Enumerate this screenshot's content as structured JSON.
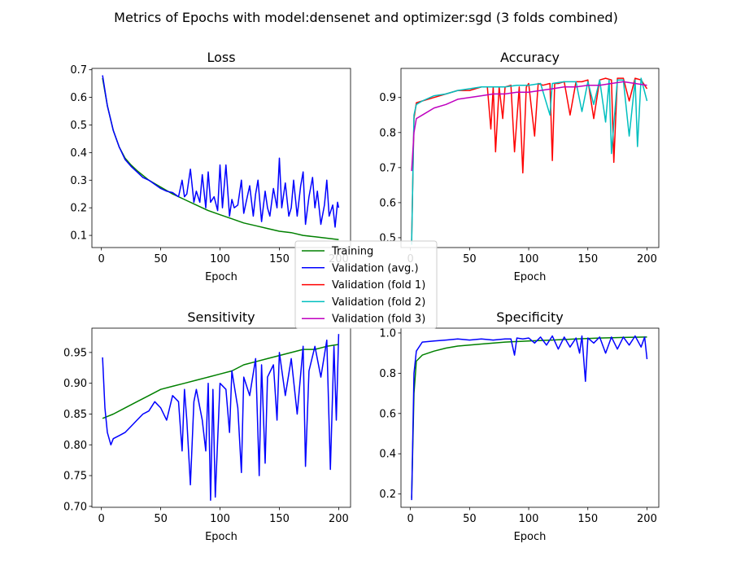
{
  "figure_title": "Metrics of Epochs with model:densenet and optimizer:sgd (3 folds combined)",
  "legend": {
    "placement": "center",
    "entries": [
      {
        "label": "Training",
        "color": "#008000"
      },
      {
        "label": "Validation (avg.)",
        "color": "#0000ff"
      },
      {
        "label": "Validation (fold 1)",
        "color": "#ff0000"
      },
      {
        "label": "Validation (fold 2)",
        "color": "#00bfbf"
      },
      {
        "label": "Validation (fold 3)",
        "color": "#bf00bf"
      }
    ]
  },
  "chart_data": [
    {
      "type": "line",
      "title": "Loss",
      "xlabel": "Epoch",
      "ylabel": "",
      "xlim": [
        -8,
        210
      ],
      "ylim": [
        0.056,
        0.705
      ],
      "xticks": [
        0,
        50,
        100,
        150,
        200
      ],
      "yticks": [
        0.1,
        0.2,
        0.3,
        0.4,
        0.5,
        0.6,
        0.7
      ],
      "tick_labels_y": [
        "0.1",
        "0.2",
        "0.3",
        "0.4",
        "0.5",
        "0.6",
        "0.7"
      ],
      "grid": false,
      "series": [
        {
          "name": "Training",
          "color": "#008000",
          "x": [
            1,
            5,
            10,
            15,
            20,
            25,
            30,
            40,
            50,
            60,
            70,
            80,
            90,
            100,
            110,
            120,
            130,
            140,
            150,
            160,
            170,
            180,
            190,
            200
          ],
          "y": [
            0.67,
            0.57,
            0.48,
            0.42,
            0.38,
            0.355,
            0.335,
            0.3,
            0.275,
            0.25,
            0.23,
            0.21,
            0.19,
            0.175,
            0.16,
            0.145,
            0.135,
            0.125,
            0.115,
            0.11,
            0.1,
            0.095,
            0.09,
            0.085
          ]
        },
        {
          "name": "Validation (avg.)",
          "color": "#0000ff",
          "x": [
            1,
            5,
            10,
            15,
            20,
            25,
            30,
            35,
            40,
            45,
            50,
            55,
            60,
            65,
            68,
            70,
            72,
            75,
            78,
            80,
            83,
            85,
            88,
            90,
            92,
            95,
            98,
            100,
            102,
            105,
            108,
            110,
            112,
            115,
            118,
            120,
            122,
            125,
            128,
            130,
            132,
            135,
            138,
            140,
            142,
            145,
            148,
            150,
            152,
            155,
            158,
            160,
            162,
            165,
            168,
            170,
            172,
            175,
            178,
            180,
            182,
            185,
            188,
            190,
            192,
            195,
            197,
            199,
            200
          ],
          "y": [
            0.68,
            0.57,
            0.48,
            0.42,
            0.375,
            0.35,
            0.33,
            0.31,
            0.3,
            0.285,
            0.27,
            0.26,
            0.255,
            0.24,
            0.3,
            0.24,
            0.25,
            0.34,
            0.22,
            0.26,
            0.22,
            0.32,
            0.2,
            0.33,
            0.22,
            0.24,
            0.19,
            0.355,
            0.2,
            0.355,
            0.17,
            0.23,
            0.2,
            0.21,
            0.3,
            0.18,
            0.22,
            0.28,
            0.17,
            0.25,
            0.3,
            0.15,
            0.26,
            0.2,
            0.17,
            0.27,
            0.2,
            0.38,
            0.2,
            0.29,
            0.17,
            0.2,
            0.3,
            0.17,
            0.28,
            0.33,
            0.14,
            0.24,
            0.31,
            0.2,
            0.26,
            0.14,
            0.21,
            0.3,
            0.17,
            0.21,
            0.13,
            0.22,
            0.2
          ]
        }
      ]
    },
    {
      "type": "line",
      "title": "Accuracy",
      "xlabel": "Epoch",
      "ylabel": "",
      "xlim": [
        -8,
        210
      ],
      "ylim": [
        0.472,
        0.983
      ],
      "xticks": [
        0,
        50,
        100,
        150,
        200
      ],
      "yticks": [
        0.5,
        0.6,
        0.7,
        0.8,
        0.9
      ],
      "tick_labels_y": [
        "0.5",
        "0.6",
        "0.7",
        "0.8",
        "0.9"
      ],
      "grid": false,
      "series": [
        {
          "name": "Validation (fold 1)",
          "color": "#ff0000",
          "x": [
            1,
            3,
            5,
            10,
            20,
            30,
            40,
            50,
            60,
            65,
            68,
            70,
            72,
            75,
            78,
            80,
            85,
            88,
            92,
            95,
            98,
            100,
            105,
            108,
            112,
            118,
            120,
            122,
            125,
            130,
            135,
            140,
            145,
            150,
            155,
            160,
            165,
            170,
            172,
            175,
            180,
            185,
            190,
            195,
            200
          ],
          "y": [
            0.49,
            0.84,
            0.885,
            0.89,
            0.9,
            0.91,
            0.92,
            0.92,
            0.93,
            0.93,
            0.81,
            0.93,
            0.745,
            0.93,
            0.84,
            0.93,
            0.935,
            0.745,
            0.93,
            0.685,
            0.93,
            0.94,
            0.79,
            0.94,
            0.935,
            0.94,
            0.72,
            0.94,
            0.94,
            0.945,
            0.85,
            0.945,
            0.945,
            0.95,
            0.84,
            0.95,
            0.955,
            0.95,
            0.715,
            0.955,
            0.955,
            0.89,
            0.955,
            0.95,
            0.925
          ]
        },
        {
          "name": "Validation (fold 2)",
          "color": "#00bfbf",
          "x": [
            1,
            3,
            5,
            10,
            20,
            30,
            40,
            50,
            60,
            70,
            80,
            90,
            100,
            110,
            118,
            120,
            130,
            140,
            145,
            150,
            155,
            160,
            165,
            168,
            170,
            175,
            180,
            185,
            190,
            192,
            195,
            200
          ],
          "y": [
            0.48,
            0.85,
            0.88,
            0.89,
            0.905,
            0.91,
            0.92,
            0.925,
            0.93,
            0.93,
            0.93,
            0.935,
            0.935,
            0.94,
            0.85,
            0.94,
            0.945,
            0.945,
            0.86,
            0.945,
            0.88,
            0.95,
            0.83,
            0.95,
            0.74,
            0.95,
            0.95,
            0.79,
            0.95,
            0.76,
            0.955,
            0.89
          ]
        },
        {
          "name": "Validation (fold 3)",
          "color": "#bf00bf",
          "x": [
            1,
            3,
            5,
            10,
            20,
            30,
            40,
            50,
            60,
            70,
            80,
            90,
            100,
            110,
            120,
            130,
            140,
            150,
            160,
            170,
            180,
            190,
            200
          ],
          "y": [
            0.69,
            0.8,
            0.84,
            0.85,
            0.87,
            0.88,
            0.895,
            0.9,
            0.905,
            0.91,
            0.91,
            0.915,
            0.915,
            0.92,
            0.925,
            0.93,
            0.93,
            0.935,
            0.935,
            0.94,
            0.945,
            0.94,
            0.935
          ]
        }
      ]
    },
    {
      "type": "line",
      "title": "Sensitivity",
      "xlabel": "Epoch",
      "ylabel": "",
      "xlim": [
        -8,
        210
      ],
      "ylim": [
        0.6985,
        0.9895
      ],
      "xticks": [
        0,
        50,
        100,
        150,
        200
      ],
      "yticks": [
        0.7,
        0.75,
        0.8,
        0.85,
        0.9,
        0.95
      ],
      "tick_labels_y": [
        "0.70",
        "0.75",
        "0.80",
        "0.85",
        "0.90",
        "0.95"
      ],
      "grid": false,
      "series": [
        {
          "name": "Training",
          "color": "#008000",
          "x": [
            1,
            10,
            20,
            30,
            40,
            50,
            60,
            70,
            80,
            90,
            100,
            110,
            120,
            130,
            140,
            150,
            160,
            170,
            180,
            190,
            200
          ],
          "y": [
            0.843,
            0.85,
            0.86,
            0.87,
            0.88,
            0.89,
            0.895,
            0.9,
            0.905,
            0.91,
            0.915,
            0.92,
            0.93,
            0.935,
            0.94,
            0.945,
            0.95,
            0.955,
            0.955,
            0.96,
            0.963
          ]
        },
        {
          "name": "Validation (avg.)",
          "color": "#0000ff",
          "x": [
            1,
            3,
            5,
            8,
            10,
            15,
            20,
            25,
            30,
            35,
            40,
            45,
            50,
            55,
            60,
            65,
            68,
            70,
            72,
            75,
            78,
            80,
            85,
            88,
            90,
            92,
            94,
            96,
            100,
            105,
            108,
            110,
            115,
            118,
            120,
            125,
            130,
            133,
            135,
            138,
            140,
            145,
            148,
            150,
            155,
            160,
            165,
            170,
            172,
            175,
            180,
            185,
            190,
            193,
            196,
            198,
            200
          ],
          "y": [
            0.942,
            0.86,
            0.82,
            0.8,
            0.81,
            0.815,
            0.82,
            0.83,
            0.84,
            0.85,
            0.855,
            0.87,
            0.86,
            0.84,
            0.88,
            0.87,
            0.79,
            0.89,
            0.84,
            0.735,
            0.87,
            0.89,
            0.84,
            0.79,
            0.9,
            0.71,
            0.89,
            0.715,
            0.9,
            0.89,
            0.82,
            0.92,
            0.86,
            0.755,
            0.91,
            0.88,
            0.94,
            0.75,
            0.93,
            0.77,
            0.91,
            0.93,
            0.84,
            0.95,
            0.88,
            0.94,
            0.85,
            0.96,
            0.765,
            0.92,
            0.96,
            0.91,
            0.97,
            0.76,
            0.96,
            0.84,
            0.98
          ]
        }
      ]
    },
    {
      "type": "line",
      "title": "Specificity",
      "xlabel": "Epoch",
      "ylabel": "",
      "xlim": [
        -8,
        210
      ],
      "ylim": [
        0.134,
        1.024
      ],
      "xticks": [
        0,
        50,
        100,
        150,
        200
      ],
      "yticks": [
        0.2,
        0.4,
        0.6,
        0.8,
        1.0
      ],
      "tick_labels_y": [
        "0.2",
        "0.4",
        "0.6",
        "0.8",
        "1.0"
      ],
      "grid": false,
      "series": [
        {
          "name": "Training",
          "color": "#008000",
          "x": [
            1,
            3,
            5,
            10,
            20,
            30,
            40,
            50,
            60,
            80,
            100,
            120,
            140,
            160,
            180,
            200
          ],
          "y": [
            0.18,
            0.7,
            0.86,
            0.89,
            0.91,
            0.925,
            0.935,
            0.94,
            0.945,
            0.955,
            0.96,
            0.965,
            0.97,
            0.975,
            0.978,
            0.98
          ]
        },
        {
          "name": "Validation (avg.)",
          "color": "#0000ff",
          "x": [
            1,
            3,
            5,
            10,
            20,
            30,
            40,
            50,
            60,
            70,
            80,
            85,
            88,
            90,
            95,
            100,
            105,
            110,
            115,
            120,
            125,
            130,
            135,
            140,
            143,
            145,
            148,
            150,
            155,
            160,
            165,
            170,
            175,
            180,
            185,
            190,
            195,
            198,
            200
          ],
          "y": [
            0.17,
            0.8,
            0.91,
            0.955,
            0.96,
            0.965,
            0.97,
            0.965,
            0.97,
            0.965,
            0.97,
            0.97,
            0.89,
            0.975,
            0.97,
            0.975,
            0.95,
            0.98,
            0.94,
            0.985,
            0.92,
            0.98,
            0.93,
            0.975,
            0.9,
            0.985,
            0.76,
            0.975,
            0.95,
            0.98,
            0.9,
            0.98,
            0.92,
            0.98,
            0.94,
            0.985,
            0.93,
            0.98,
            0.87
          ]
        }
      ]
    }
  ]
}
